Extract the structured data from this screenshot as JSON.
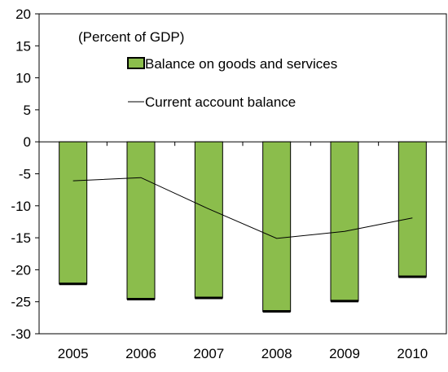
{
  "chart_data": {
    "type": "bar",
    "note": "(Percent of GDP)",
    "categories": [
      "2005",
      "2006",
      "2007",
      "2008",
      "2009",
      "2010"
    ],
    "series": [
      {
        "name": "Balance on goods and services",
        "type": "bar",
        "color": "#8bbd4c",
        "values": [
          -22.2,
          -24.6,
          -24.4,
          -26.5,
          -24.9,
          -21.1
        ]
      },
      {
        "name": "Current account balance",
        "type": "line",
        "color": "#000000",
        "values": [
          -6.1,
          -5.6,
          -10.5,
          -15.1,
          -14.0,
          -11.9
        ]
      }
    ],
    "ylim": [
      -30,
      20
    ],
    "yticks": [
      20,
      15,
      10,
      5,
      0,
      -5,
      -10,
      -15,
      -20,
      -25,
      -30
    ],
    "grid": false,
    "legend_position": "top-left inside plot"
  }
}
